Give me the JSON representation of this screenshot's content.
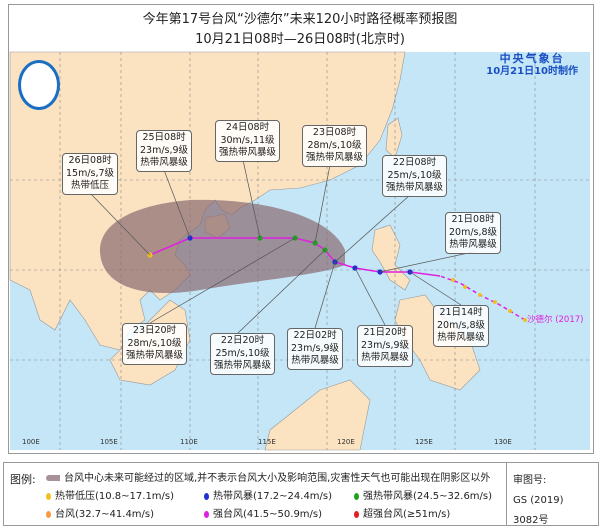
{
  "title": "今年第17号台风“沙德尔”未来120小时路径概率预报图",
  "subtitle": "10月21日08时—26日08时(北京时)",
  "agency": {
    "name": "中央气象台",
    "issued": "10月21日10时制作"
  },
  "storm_label": "沙德尔 (2017)",
  "longitude_labels": [
    "100E",
    "105E",
    "110E",
    "115E",
    "120E",
    "125E",
    "130E"
  ],
  "forecast_points": [
    {
      "time": "26日08时",
      "wind": "15m/s,7级",
      "category": "热带低压",
      "color": "#f0c020"
    },
    {
      "time": "25日08时",
      "wind": "23m/s,9级",
      "category": "热带风暴级",
      "color": "#2030d0"
    },
    {
      "time": "24日08时",
      "wind": "30m/s,11级",
      "category": "强热带风暴级",
      "color": "#20a020"
    },
    {
      "time": "23日08时",
      "wind": "28m/s,10级",
      "category": "强热带风暴级",
      "color": "#20a020"
    },
    {
      "time": "22日08时",
      "wind": "25m/s,10级",
      "category": "强热带风暴级",
      "color": "#20a020"
    },
    {
      "time": "21日08时",
      "wind": "20m/s,8级",
      "category": "热带风暴级",
      "color": "#2030d0"
    },
    {
      "time": "23日20时",
      "wind": "28m/s,10级",
      "category": "强热带风暴级",
      "color": "#20a020"
    },
    {
      "time": "22日20时",
      "wind": "25m/s,10级",
      "category": "强热带风暴级",
      "color": "#20a020"
    },
    {
      "time": "22日02时",
      "wind": "23m/s,9级",
      "category": "热带风暴级",
      "color": "#2030d0"
    },
    {
      "time": "21日20时",
      "wind": "23m/s,9级",
      "category": "热带风暴级",
      "color": "#2030d0"
    },
    {
      "time": "21日14时",
      "wind": "20m/s,8级",
      "category": "热带风暴级",
      "color": "#2030d0"
    }
  ],
  "legend": {
    "heading": "图例:",
    "cone_note": "台风中心未来可能经过的区域,并不表示台风大小及影响范围,灾害性天气也可能出现在阴影区以外",
    "items": [
      {
        "label": "热带低压(10.8~17.1m/s)",
        "color": "#f0c020"
      },
      {
        "label": "热带风暴(17.2~24.4m/s)",
        "color": "#2030d0"
      },
      {
        "label": "强热带风暴(24.5~32.6m/s)",
        "color": "#20a020"
      },
      {
        "label": "台风(32.7~41.4m/s)",
        "color": "#f59a40"
      },
      {
        "label": "强台风(41.5~50.9m/s)",
        "color": "#e020e0"
      },
      {
        "label": "超强台风(≥51m/s)",
        "color": "#e02020"
      }
    ]
  },
  "approval": {
    "label": "审图号:",
    "number": "GS (2019) 3082号"
  },
  "colors": {
    "land": "#fbe3c2",
    "sea": "#c4e6f7",
    "cone": "#8a6a70",
    "track": "#e020e0"
  }
}
